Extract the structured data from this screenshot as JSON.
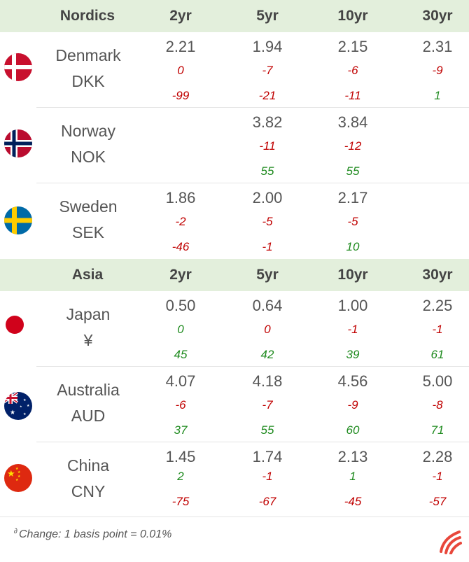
{
  "sections": [
    {
      "title": "Nordics",
      "columns": [
        "2yr",
        "5yr",
        "10yr",
        "30yr"
      ],
      "rows": [
        {
          "name": "Denmark",
          "code": "DKK",
          "flag": "denmark-flag",
          "values": [
            "2.21",
            "1.94",
            "2.15",
            "2.31"
          ],
          "change1": [
            "0",
            "-7",
            "-6",
            "-9"
          ],
          "change2": [
            "-99",
            "-21",
            "-11",
            "1"
          ]
        },
        {
          "name": "Norway",
          "code": "NOK",
          "flag": "norway-flag",
          "values": [
            "",
            "3.82",
            "3.84",
            ""
          ],
          "change1": [
            "",
            "-11",
            "-12",
            ""
          ],
          "change2": [
            "",
            "55",
            "55",
            ""
          ]
        },
        {
          "name": "Sweden",
          "code": "SEK",
          "flag": "sweden-flag",
          "values": [
            "1.86",
            "2.00",
            "2.17",
            ""
          ],
          "change1": [
            "-2",
            "-5",
            "-5",
            ""
          ],
          "change2": [
            "-46",
            "-1",
            "10",
            ""
          ]
        }
      ]
    },
    {
      "title": "Asia",
      "columns": [
        "2yr",
        "5yr",
        "10yr",
        "30yr"
      ],
      "rows": [
        {
          "name": "Japan",
          "code": "¥",
          "flag": "japan-flag",
          "values": [
            "0.50",
            "0.64",
            "1.00",
            "2.25"
          ],
          "change1": [
            "0",
            "0",
            "-1",
            "-1"
          ],
          "change2": [
            "45",
            "42",
            "39",
            "61"
          ]
        },
        {
          "name": "Australia",
          "code": "AUD",
          "flag": "australia-flag",
          "values": [
            "4.07",
            "4.18",
            "4.56",
            "5.00"
          ],
          "change1": [
            "-6",
            "-7",
            "-9",
            "-8"
          ],
          "change2": [
            "37",
            "55",
            "60",
            "71"
          ]
        },
        {
          "name": "China",
          "code": "CNY",
          "flag": "china-flag",
          "values": [
            "1.45",
            "1.74",
            "2.13",
            "2.28"
          ],
          "change1": [
            "2",
            "-1",
            "1",
            "-1"
          ],
          "change2": [
            "-75",
            "-67",
            "-45",
            "-57"
          ]
        }
      ]
    }
  ],
  "footnote": {
    "marker": "∂",
    "text": "Change: 1 basis point = 0.01%"
  },
  "colors": {
    "header_bg": "#e3efdc",
    "negative": "#c00000",
    "positive": "#1e8a1e"
  }
}
